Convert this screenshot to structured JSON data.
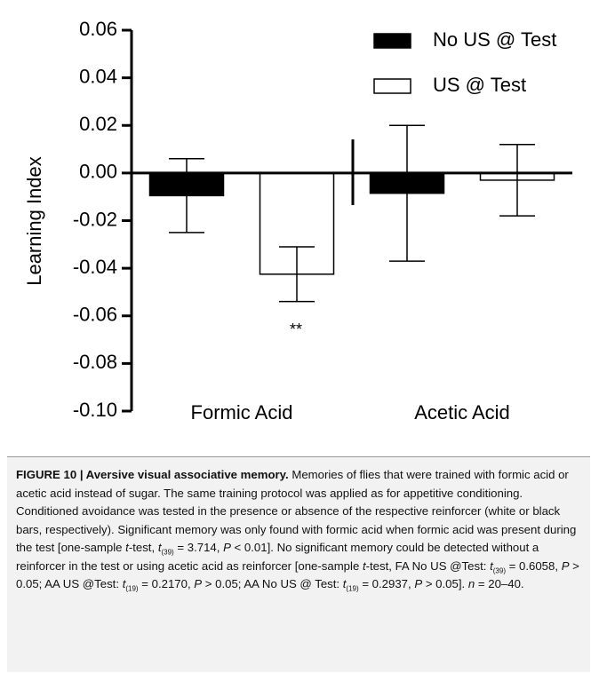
{
  "chart_data": {
    "type": "bar",
    "y_label": "Learning Index",
    "categories": [
      "Formic Acid",
      "Acetic Acid"
    ],
    "series": [
      {
        "name": "No US @ Test",
        "color": "#000000",
        "values": [
          -0.0095,
          -0.0085
        ],
        "errors": [
          0.0155,
          0.0285
        ]
      },
      {
        "name": "US @ Test",
        "color": "#ffffff",
        "values": [
          -0.0425,
          -0.003
        ],
        "errors": [
          0.0115,
          0.015
        ]
      }
    ],
    "annotation": "**",
    "ylim": [
      -0.1,
      0.06
    ],
    "yticks": [
      {
        "value": -0.1,
        "label": "-0.10"
      },
      -0.08,
      -0.06,
      -0.04,
      -0.02,
      {
        "value": 0,
        "label": "0.00"
      },
      0.02,
      0.04,
      0.06
    ],
    "legend": "upper right"
  },
  "caption": [
    "FIGURE 10 | Aversive visual associative memory.",
    " Memories of flies that were trained with formic acid or acetic acid instead of sugar. The same training protocol was applied as for appetitive conditioning. Conditioned avoidance was tested in the presence or absence of the respective reinforcer (white or black bars, respectively). Significant memory was only found with formic acid when formic acid was present during the test [one-sample ",
    "t",
    "-test, ",
    "t",
    "(39)",
    " = 3.714, ",
    "P",
    " < 0.01]. No significant memory could be detected without a reinforcer in the test or using acetic acid as reinforcer [one-sample ",
    "t",
    "-test, FA No US @Test: ",
    "t",
    "(39)",
    " = 0.6058, ",
    "P",
    " > 0.05; AA US @Test: ",
    "t",
    "(19)",
    " = 0.2170, ",
    "P",
    " > 0.05; AA No US @ Test: ",
    "t",
    "(19)",
    " = 0.2937, ",
    "P",
    " > 0.05]. ",
    "n",
    " = 20–40."
  ]
}
